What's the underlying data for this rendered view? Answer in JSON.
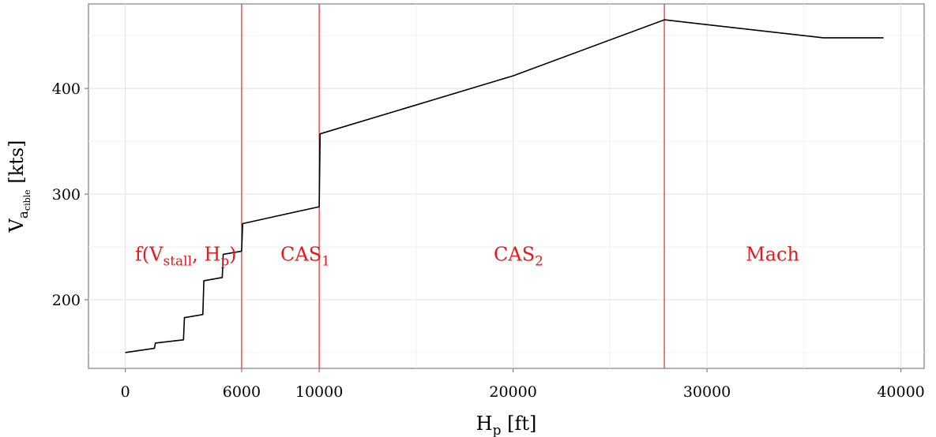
{
  "chart_data": {
    "type": "line",
    "xlabel": {
      "main": "H",
      "sub": "p",
      "unit": " [ft]"
    },
    "ylabel": {
      "main": "V",
      "sub": "a",
      "subsub": "cible",
      "unit": " [kts]"
    },
    "xlim": [
      -1900,
      41200
    ],
    "ylim": [
      135,
      480
    ],
    "x_ticks": [
      0,
      6000,
      10000,
      20000,
      30000,
      40000
    ],
    "x_tick_labels": [
      "0",
      "6000",
      "10000",
      "20000",
      "30000",
      "40000"
    ],
    "x_minor_gridlines": [
      15000,
      25000,
      35000
    ],
    "y_ticks": [
      200,
      300,
      400
    ],
    "y_tick_labels": [
      "200",
      "300",
      "400"
    ],
    "y_minor_gridlines": [
      150,
      250,
      350,
      450
    ],
    "grid": true,
    "series": [
      {
        "color": "#000000",
        "points": [
          [
            0,
            150
          ],
          [
            1500,
            154
          ],
          [
            1550,
            159
          ],
          [
            3000,
            162
          ],
          [
            3050,
            183
          ],
          [
            4000,
            186
          ],
          [
            4050,
            218
          ],
          [
            5000,
            221
          ],
          [
            5050,
            243
          ],
          [
            6000,
            246
          ],
          [
            6050,
            272
          ],
          [
            10000,
            288
          ],
          [
            10050,
            357
          ],
          [
            20000,
            412
          ],
          [
            27800,
            465
          ],
          [
            36000,
            448
          ],
          [
            39100,
            448
          ]
        ]
      }
    ],
    "vertical_lines": [
      {
        "x": 6000,
        "color": "#e41a1c"
      },
      {
        "x": 10000,
        "color": "#e41a1c"
      },
      {
        "x": 27800,
        "color": "#e41a1c"
      }
    ],
    "annotations": [
      {
        "x": 500,
        "y": 237,
        "color": "#e41a1c",
        "text": [
          {
            "t": "f(V"
          },
          {
            "t": "stall",
            "sub": true
          },
          {
            "t": ", H"
          },
          {
            "t": "p",
            "sub": true
          },
          {
            "t": ")"
          }
        ]
      },
      {
        "x": 8000,
        "y": 237,
        "color": "#e41a1c",
        "text": [
          {
            "t": "CAS"
          },
          {
            "t": "1",
            "sub": true
          }
        ]
      },
      {
        "x": 19000,
        "y": 237,
        "color": "#e41a1c",
        "text": [
          {
            "t": "CAS"
          },
          {
            "t": "2",
            "sub": true
          }
        ]
      },
      {
        "x": 32000,
        "y": 237,
        "color": "#e41a1c",
        "text": [
          {
            "t": "Mach"
          }
        ]
      }
    ]
  }
}
